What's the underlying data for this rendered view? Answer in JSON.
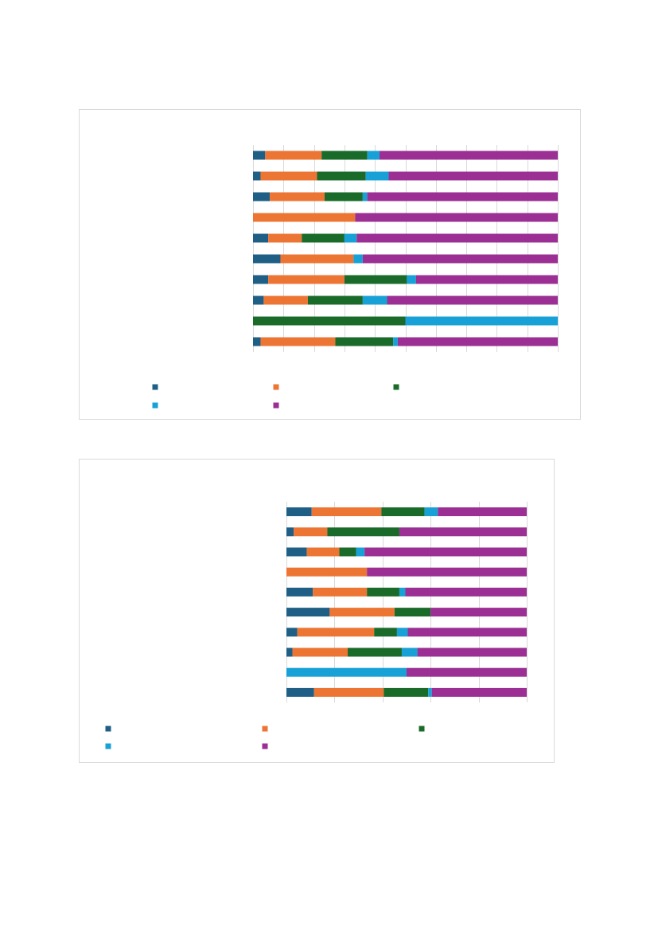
{
  "chart_data": [
    {
      "type": "bar",
      "orientation": "horizontal",
      "stacked": true,
      "grid": true,
      "categories": [
        null,
        null,
        null,
        null,
        null,
        null,
        null,
        null,
        null,
        null
      ],
      "xlim": [
        0,
        100
      ],
      "xticks": [
        0,
        10,
        20,
        30,
        40,
        50,
        60,
        70,
        80,
        90,
        100
      ],
      "series": [
        {
          "color": "#1f5f86",
          "values": [
            4,
            2.5,
            5.5,
            0,
            5,
            9,
            5,
            3.5,
            0,
            2.5
          ]
        },
        {
          "color": "#ed7534",
          "values": [
            18.5,
            18.5,
            18,
            33.5,
            11,
            24,
            25,
            14.5,
            0,
            24.5
          ]
        },
        {
          "color": "#1a6b2a",
          "values": [
            15,
            16,
            12.5,
            0,
            14,
            0,
            20.5,
            18,
            50,
            19
          ]
        },
        {
          "color": "#17a1d6",
          "values": [
            4,
            7.5,
            1.5,
            0,
            4,
            3,
            3,
            8,
            50,
            1.5
          ]
        },
        {
          "color": "#9b2f93",
          "values": [
            58.5,
            55.5,
            62.5,
            66.5,
            66,
            64,
            46.5,
            56,
            0,
            52.5
          ]
        }
      ]
    },
    {
      "type": "bar",
      "orientation": "horizontal",
      "stacked": true,
      "grid": true,
      "categories": [
        null,
        null,
        null,
        null,
        null,
        null,
        null,
        null,
        null,
        null
      ],
      "xlim": [
        0,
        100
      ],
      "xticks": [
        0,
        20,
        40,
        60,
        80,
        100
      ],
      "series": [
        {
          "color": "#1f5f86",
          "values": [
            10.5,
            3,
            8.5,
            0,
            11,
            18,
            4.5,
            2.5,
            0,
            11.5
          ]
        },
        {
          "color": "#ed7534",
          "values": [
            29,
            14,
            13.5,
            33.5,
            22.5,
            27,
            32,
            23,
            0,
            29
          ]
        },
        {
          "color": "#1a6b2a",
          "values": [
            18,
            30,
            7,
            0,
            13.5,
            15,
            9.5,
            22.5,
            0,
            18.5
          ]
        },
        {
          "color": "#17a1d6",
          "values": [
            5.5,
            0,
            3.5,
            0,
            2.5,
            0,
            4.5,
            6.5,
            50,
            1.5
          ]
        },
        {
          "color": "#9b2f93",
          "values": [
            37,
            53,
            67.5,
            66.5,
            50.5,
            40,
            49.5,
            45.5,
            50,
            39.5
          ]
        }
      ]
    }
  ]
}
